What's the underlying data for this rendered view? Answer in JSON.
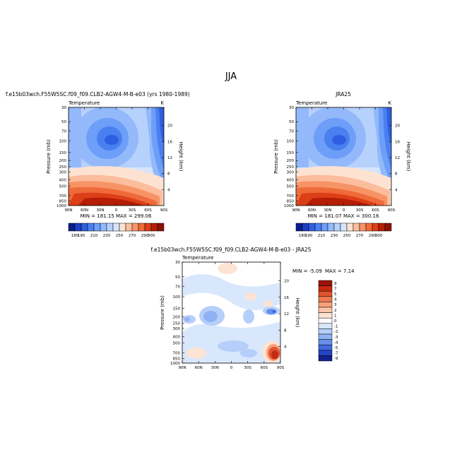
{
  "page": {
    "title": "JJA"
  },
  "panels": {
    "model": {
      "header": "f.e15b03wch.F55W5SC.f09_f09.CLB2-AGW4-M-B-e03 (yrs 1980-1989)",
      "left_label": "Temperature",
      "right_label": "K",
      "stats": "MIN = 181.15   MAX = 299.06"
    },
    "obs": {
      "header": "JRA25",
      "left_label": "Temperature",
      "right_label": "K",
      "stats": "MIN = 181.07   MAX = 300.16"
    },
    "diff": {
      "header": "f.e15b03wch.F55W5SC.f09_f09.CLB2-AGW4-M-B-e03 - JRA25",
      "left_label": "Temperature",
      "right_label": "K",
      "min_text": "MIN =   -5.09",
      "max_text": "MAX =    7.14"
    }
  },
  "chart_data": [
    {
      "type": "heatmap",
      "title": "f.e15b03wch.F55W5SC.f09_f09.CLB2-AGW4-M-B-e03 (yrs 1980-1989)",
      "ylabel": "Pressure (mb)",
      "y2label": "Height (km)",
      "x_ticks": [
        "90N",
        "60N",
        "30N",
        "0",
        "30S",
        "60S",
        "90S"
      ],
      "y_ticks": [
        "30",
        "50",
        "70",
        "100",
        "150",
        "200",
        "250",
        "300",
        "400",
        "500",
        "700",
        "850",
        "1000"
      ],
      "y2_ticks": [
        "20",
        "16",
        "12",
        "8",
        "4"
      ],
      "colorbar_ticks": [
        "180",
        "190",
        "200",
        "210",
        "220",
        "230",
        "240",
        "250",
        "260",
        "270",
        "280",
        "290",
        "300"
      ],
      "colorbar_labels": [
        "180",
        "190",
        "210",
        "230",
        "250",
        "270",
        "290",
        "300"
      ],
      "colors": [
        "#0a1e8c",
        "#1e3fc4",
        "#2f5fe0",
        "#4a7ff0",
        "#6d9ef8",
        "#93b9fb",
        "#b7d1fd",
        "#d6e5fd",
        "#fde2d2",
        "#fbbd9c",
        "#f79466",
        "#ef6a3a",
        "#dc3e17",
        "#b61d06",
        "#8a1004"
      ],
      "min": 181.15,
      "max": 299.06
    },
    {
      "type": "heatmap",
      "title": "JRA25",
      "ylabel": "Pressure (mb)",
      "y2label": "Height (km)",
      "x_ticks": [
        "90N",
        "60N",
        "30N",
        "0",
        "30S",
        "60S",
        "90S"
      ],
      "y_ticks": [
        "30",
        "50",
        "70",
        "100",
        "150",
        "200",
        "250",
        "300",
        "400",
        "500",
        "700",
        "850",
        "1000"
      ],
      "y2_ticks": [
        "20",
        "16",
        "12",
        "8",
        "4"
      ],
      "colorbar_ticks": [
        "180",
        "190",
        "200",
        "210",
        "220",
        "230",
        "240",
        "250",
        "260",
        "270",
        "280",
        "290",
        "300"
      ],
      "colorbar_labels": [
        "180",
        "190",
        "210",
        "230",
        "250",
        "270",
        "290",
        "300"
      ],
      "min": 181.07,
      "max": 300.16
    },
    {
      "type": "heatmap",
      "title": "f.e15b03wch.F55W5SC.f09_f09.CLB2-AGW4-M-B-e03 - JRA25",
      "ylabel": "Pressure (mb)",
      "y2label": "Height (km)",
      "x_ticks": [
        "90N",
        "60N",
        "30N",
        "0",
        "30S",
        "60S",
        "90S"
      ],
      "y_ticks": [
        "30",
        "50",
        "70",
        "100",
        "150",
        "200",
        "250",
        "300",
        "400",
        "500",
        "700",
        "850",
        "1000"
      ],
      "y2_ticks": [
        "20",
        "16",
        "12",
        "8",
        "4"
      ],
      "colorbar_levels": [
        "9",
        "7",
        "5",
        "4",
        "3",
        "2",
        "1",
        "0",
        "-1",
        "-2",
        "-3",
        "-4",
        "-5",
        "-7",
        "-9"
      ],
      "colors": [
        "#9b1308",
        "#c52a12",
        "#e0542e",
        "#ee7a52",
        "#f6a07b",
        "#fac4a8",
        "#fde3d3",
        "#ffffff",
        "#d8e7fc",
        "#b5cffa",
        "#8fb2f5",
        "#6790ec",
        "#4369df",
        "#2444c4",
        "#10238f"
      ],
      "min": -5.09,
      "max": 7.14
    }
  ]
}
